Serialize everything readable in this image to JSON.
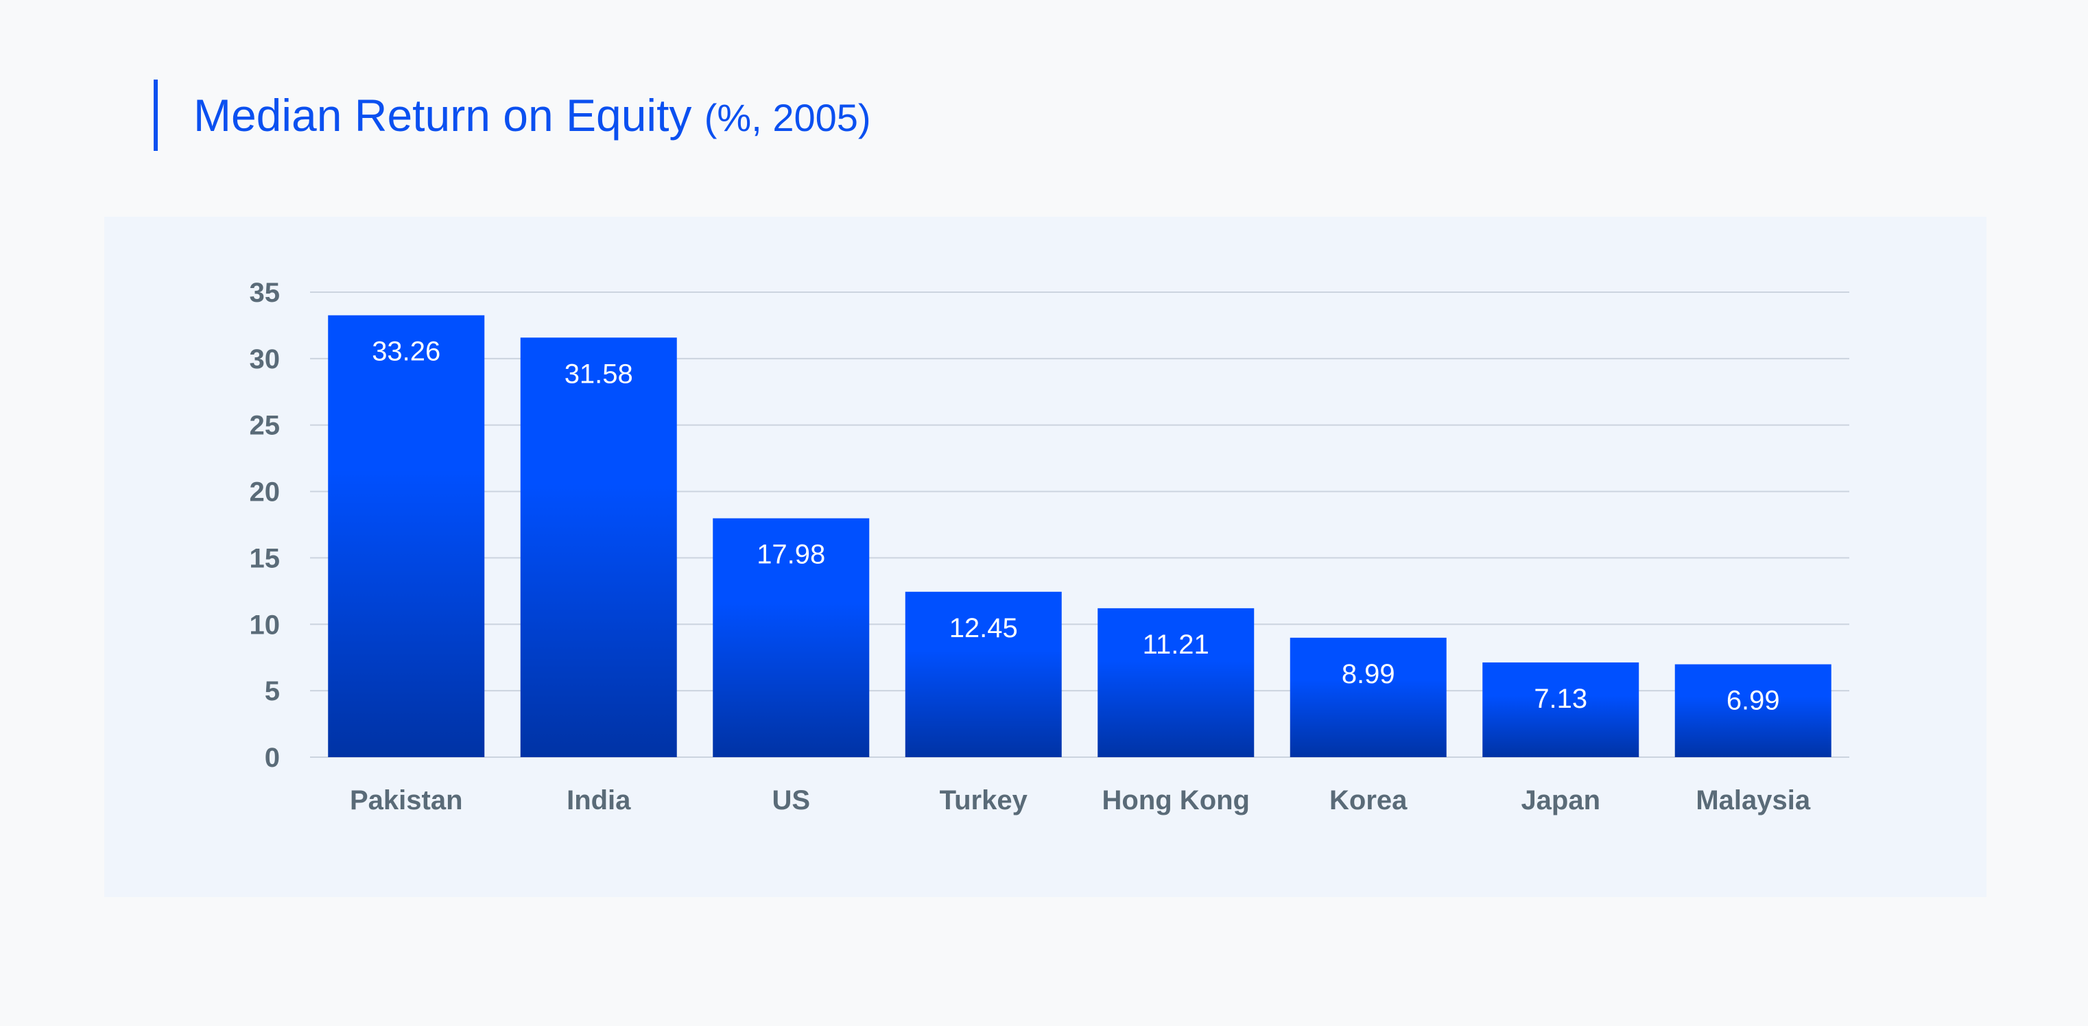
{
  "title": {
    "main": "Median Return on Equity",
    "sub": "(%, 2005)"
  },
  "colors": {
    "accent": "#0b50f0",
    "bar_top": "#0050ff",
    "bar_bottom": "#0033a5",
    "grid": "#ccd4df",
    "axis_text": "#5a6b78",
    "panel": "#f0f5fc"
  },
  "chart_data": {
    "type": "bar",
    "title": "Median Return on Equity (%, 2005)",
    "xlabel": "",
    "ylabel": "",
    "categories": [
      "Pakistan",
      "India",
      "US",
      "Turkey",
      "Hong Kong",
      "Korea",
      "Japan",
      "Malaysia"
    ],
    "values": [
      33.26,
      31.58,
      17.98,
      12.45,
      11.21,
      8.99,
      7.13,
      6.99
    ],
    "value_labels": [
      "33.26",
      "31.58",
      "17.98",
      "12.45",
      "11.21",
      "8.99",
      "7.13",
      "6.99"
    ],
    "ylim": [
      0,
      35
    ],
    "yticks": [
      0,
      5,
      10,
      15,
      20,
      25,
      30,
      35
    ],
    "grid": true,
    "legend": "none"
  }
}
